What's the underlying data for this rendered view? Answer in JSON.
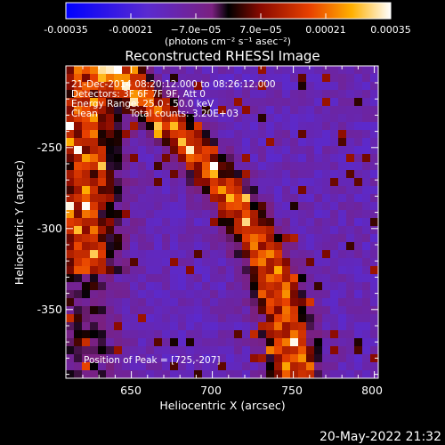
{
  "colorbar": {
    "tick_labels": [
      "-0.00035",
      "-0.00021",
      "−7.0e−05",
      "7.0e−05",
      "0.00021",
      "0.00035"
    ],
    "units_label": "(photons cm⁻² s⁻¹ asec⁻²)",
    "range": [
      -0.00035,
      0.00035
    ]
  },
  "title": "Reconstructed RHESSI Image",
  "info": {
    "time_range": "21-Dec-2014 08:20:12.000 to 08:26:12.000",
    "detectors": "Detectors: 3F 6F 7F 9F, Att 0",
    "energy": "Energy Range: 25.0 - 50.0 keV",
    "algorithm": "Clean",
    "counts": "Total counts: 3.20E+03",
    "peak": "Position of Peak = [725,-207]"
  },
  "axes": {
    "xlabel": "Heliocentric X (arcsec)",
    "ylabel": "Heliocentric Y (arcsec)",
    "x_ticks": [
      "650",
      "700",
      "750",
      "800"
    ],
    "y_ticks": [
      "-250",
      "-300",
      "-350"
    ]
  },
  "footer_timestamp": "20-May-2022 21:32"
}
